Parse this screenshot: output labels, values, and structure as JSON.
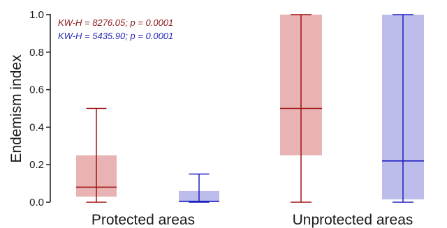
{
  "chart_data": {
    "type": "box",
    "ylabel": "Endemism index",
    "ylim": [
      0,
      1.0
    ],
    "yticks": [
      0.0,
      0.2,
      0.4,
      0.6,
      0.8,
      1.0
    ],
    "ytick_labels": [
      "0.0",
      "0.2",
      "0.4",
      "0.6",
      "0.8",
      "1.0"
    ],
    "categories": [
      "Protected areas",
      "Unprotected  areas"
    ],
    "grid": false,
    "annotations": [
      {
        "text": "KW-H = 8276.05; p = 0.0001",
        "color": "#8b1a1a"
      },
      {
        "text": "KW-H = 5435.90; p = 0.0001",
        "color": "#2a2ab8"
      }
    ],
    "series": [
      {
        "color": "#a01010",
        "fill": "#e9b3b3",
        "boxes": [
          {
            "category": "Protected areas",
            "min": 0.0,
            "q1": 0.03,
            "median": 0.08,
            "q3": 0.25,
            "max": 0.5
          },
          {
            "category": "Unprotected  areas",
            "min": 0.0,
            "q1": 0.25,
            "median": 0.5,
            "q3": 1.0,
            "max": 1.0
          }
        ]
      },
      {
        "color": "#1f1fc0",
        "fill": "#bdbdec",
        "boxes": [
          {
            "category": "Protected areas",
            "min": 0.0,
            "q1": 0.0,
            "median": 0.005,
            "q3": 0.06,
            "max": 0.15
          },
          {
            "category": "Unprotected  areas",
            "min": 0.0,
            "q1": 0.015,
            "median": 0.22,
            "q3": 1.0,
            "max": 1.0
          }
        ]
      }
    ]
  }
}
